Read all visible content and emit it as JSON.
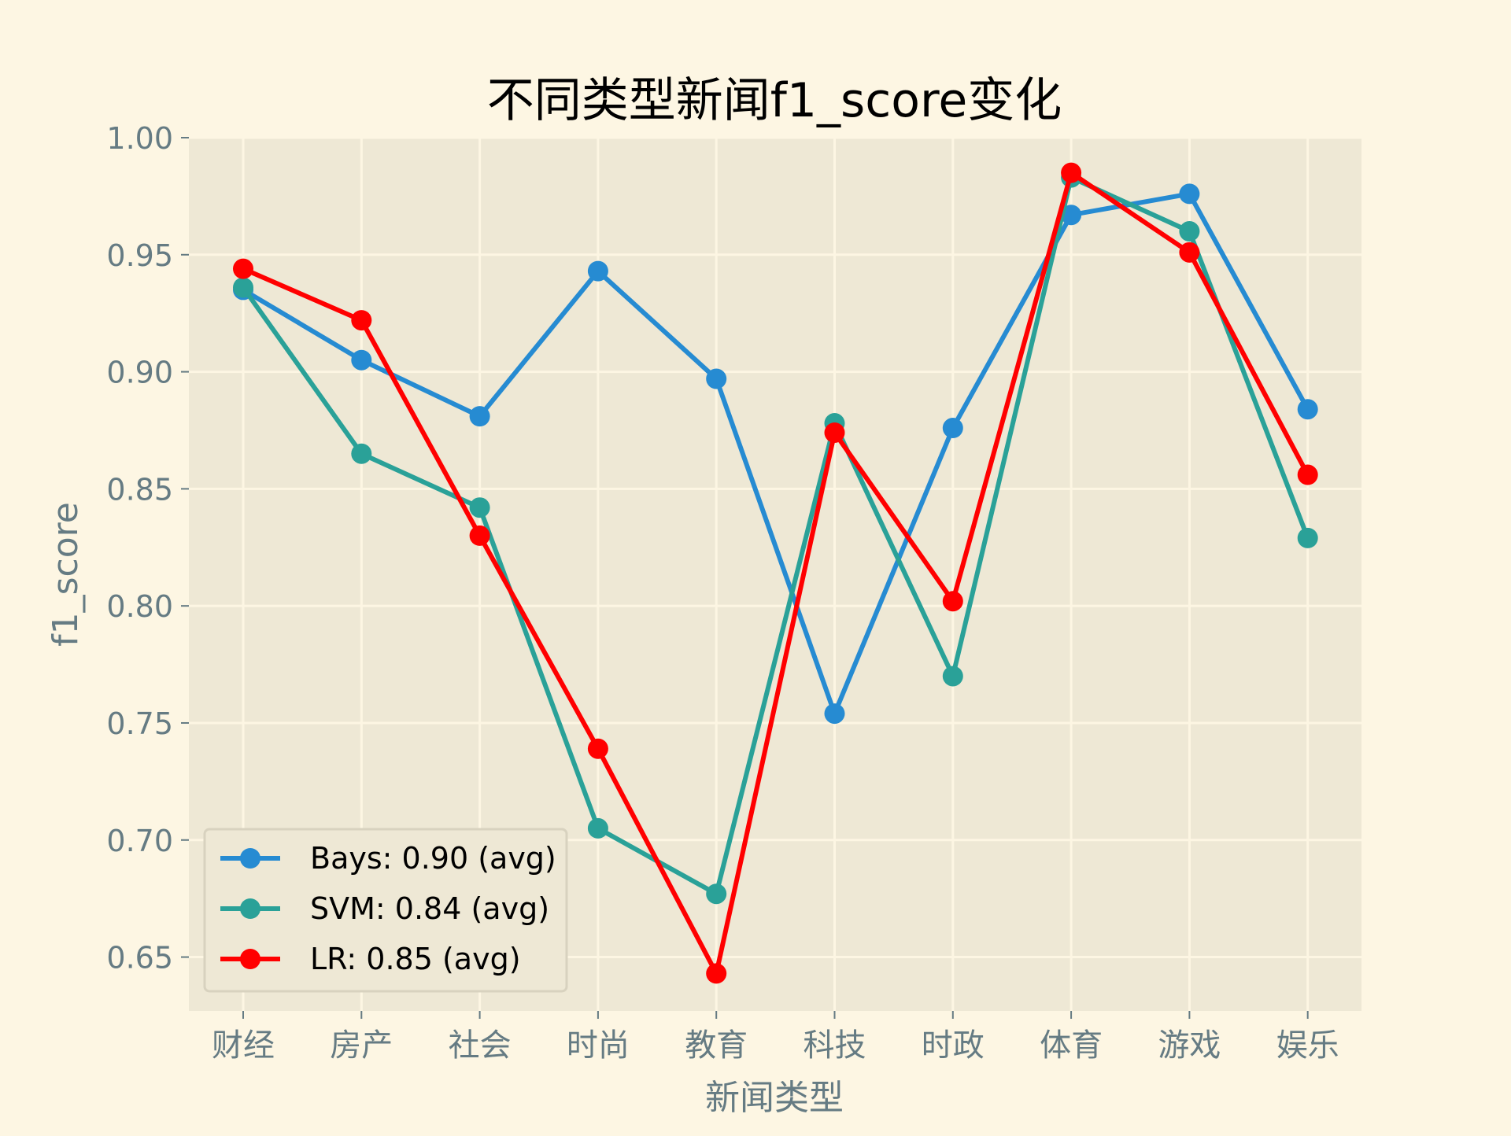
{
  "chart_data": {
    "type": "line",
    "title": "不同类型新闻f1_score变化",
    "xlabel": "新闻类型",
    "ylabel": "f1_score",
    "categories": [
      "财经",
      "房产",
      "社会",
      "时尚",
      "教育",
      "科技",
      "时政",
      "体育",
      "游戏",
      "娱乐"
    ],
    "ylim": [
      0.627,
      1.0
    ],
    "yticks": [
      "1.00",
      "0.95",
      "0.90",
      "0.85",
      "0.80",
      "0.75",
      "0.70",
      "0.65"
    ],
    "ytick_values": [
      1.0,
      0.95,
      0.9,
      0.85,
      0.8,
      0.75,
      0.7,
      0.65
    ],
    "grid": true,
    "legend_position": "bottom-left",
    "series": [
      {
        "name": "Bays: 0.90 (avg)",
        "color": "#268bd2",
        "values": [
          0.935,
          0.905,
          0.881,
          0.943,
          0.897,
          0.754,
          0.876,
          0.967,
          0.976,
          0.884
        ]
      },
      {
        "name": "SVM: 0.84 (avg)",
        "color": "#2aa198",
        "values": [
          0.936,
          0.865,
          0.842,
          0.705,
          0.677,
          0.878,
          0.77,
          0.983,
          0.96,
          0.829
        ]
      },
      {
        "name": "LR: 0.85 (avg)",
        "color": "#ff0000",
        "values": [
          0.944,
          0.922,
          0.83,
          0.739,
          0.643,
          0.874,
          0.802,
          0.985,
          0.951,
          0.856
        ]
      }
    ]
  },
  "colors": {
    "figure_bg": "#fdf6e3",
    "axes_bg": "#eee8d5",
    "grid": "#fdf6e3",
    "tick_text": "#657b83",
    "title_text": "#000000"
  }
}
